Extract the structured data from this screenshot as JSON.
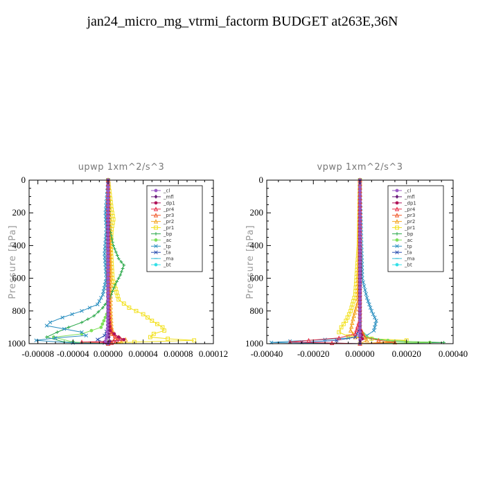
{
  "page": {
    "title": "jan24_micro_mg_vtrmi_factorm  BUDGET at263E,36N"
  },
  "colors": {
    "_cl": "#9b59c6",
    "_mfl": "#6a1b7a",
    "_dp1": "#b0145a",
    "_pr4": "#e8304a",
    "_pr3": "#f05a2a",
    "_pr2": "#f5a623",
    "_pr1": "#f2e01a",
    "_bp": "#2aa84a",
    "_ac": "#7fe05a",
    "_tp": "#2a8fc0",
    "_ta": "#2a4fb0",
    "_ma": "#3ac0d8",
    "_bt": "#33e0e8"
  },
  "chart_data": [
    {
      "id": "upwp",
      "type": "line",
      "title": "upwp   1xm^2/s^3",
      "ylabel": "Pressure [hPa]",
      "xlabel": "",
      "xlim": [
        -9e-05,
        0.00012
      ],
      "ylim": [
        1000,
        0
      ],
      "xticks": [
        -8e-05,
        -4e-05,
        0.0,
        4e-05,
        8e-05,
        0.00012
      ],
      "xtick_labels": [
        "-0.00008",
        "-0.00004",
        "0.00000",
        "0.00004",
        "0.00008",
        "0.00012"
      ],
      "yticks": [
        0,
        200,
        400,
        600,
        800,
        1000
      ],
      "ytick_labels": [
        "0",
        "200",
        "400",
        "600",
        "800",
        "1000"
      ],
      "legend": [
        "_cl",
        "_mfl",
        "_dp1",
        "_pr4",
        "_pr3",
        "_pr2",
        "_pr1",
        "_bp",
        "_ac",
        "_tp",
        "_ta",
        "_ma",
        "_bt"
      ],
      "legend_position": "top-right",
      "series": [
        {
          "name": "_pr1",
          "x": [
            0,
            4e-06,
            6e-06,
            4e-06,
            3e-06,
            5e-06,
            1.2e-05,
            2.4e-05,
            4e-05,
            5e-05,
            6.2e-05,
            6.4e-05,
            5.2e-05,
            4.8e-05,
            6.8e-05,
            9.8e-05,
            3e-05,
            0
          ],
          "y": [
            0,
            180,
            240,
            300,
            400,
            600,
            730,
            780,
            820,
            860,
            900,
            920,
            940,
            960,
            970,
            980,
            990,
            1000
          ]
        },
        {
          "name": "_pr2",
          "x": [
            0,
            2e-06,
            3e-06,
            3e-06,
            4e-06,
            6e-06,
            1.2e-05,
            2e-05,
            1.5e-05,
            0
          ],
          "y": [
            0,
            300,
            600,
            800,
            900,
            940,
            960,
            975,
            990,
            1000
          ]
        },
        {
          "name": "_bp",
          "x": [
            0,
            2e-06,
            6e-06,
            1.2e-05,
            1.8e-05,
            1.4e-05,
            8e-06,
            2e-06,
            -6e-06,
            -1.6e-05,
            -3e-05,
            -4.5e-05,
            -5.8e-05,
            -7e-05,
            -5e-05,
            0
          ],
          "y": [
            0,
            300,
            400,
            480,
            520,
            580,
            640,
            720,
            780,
            830,
            870,
            900,
            930,
            960,
            990,
            1000
          ]
        },
        {
          "name": "_ac",
          "x": [
            0,
            0,
            -8e-06,
            -3e-05,
            -6.2e-05,
            -4e-05,
            0
          ],
          "y": [
            0,
            800,
            900,
            940,
            960,
            990,
            1000
          ]
        },
        {
          "name": "_tp",
          "x": [
            0,
            -3e-06,
            -2e-06,
            -4e-06,
            -2e-06,
            -6e-06,
            -1.2e-05,
            -3e-05,
            -5.2e-05,
            -6.6e-05,
            -7e-05,
            -5e-05,
            -3e-05,
            -2.5e-05,
            -6e-05,
            -8.2e-05,
            -4e-05,
            0
          ],
          "y": [
            0,
            200,
            300,
            450,
            600,
            700,
            760,
            800,
            840,
            870,
            890,
            910,
            930,
            950,
            965,
            980,
            995,
            1000
          ]
        },
        {
          "name": "_ta",
          "x": [
            0,
            0,
            0,
            -4e-06,
            -1.2e-05,
            -4e-06,
            0
          ],
          "y": [
            0,
            600,
            900,
            950,
            975,
            995,
            1000
          ]
        },
        {
          "name": "_pr4",
          "x": [
            0,
            0,
            2e-06,
            4e-06,
            8e-06,
            1.4e-05,
            1e-05,
            6e-06,
            -3e-05,
            4e-06,
            0
          ],
          "y": [
            0,
            700,
            880,
            930,
            955,
            970,
            980,
            985,
            990,
            995,
            1000
          ]
        },
        {
          "name": "_pr3",
          "x": [
            0,
            1e-06,
            4e-06,
            8e-06,
            4e-06,
            0
          ],
          "y": [
            0,
            850,
            940,
            970,
            990,
            1000
          ]
        },
        {
          "name": "_dp1",
          "x": [
            0,
            0,
            0,
            0,
            0,
            2e-06,
            1.2e-05,
            1.8e-05,
            -4e-06,
            0
          ],
          "y": [
            0,
            200,
            400,
            600,
            800,
            920,
            960,
            975,
            990,
            1000
          ]
        },
        {
          "name": "_mfl",
          "x": [
            0,
            0,
            0,
            0,
            1e-06,
            2e-06,
            0
          ],
          "y": [
            0,
            300,
            600,
            900,
            960,
            985,
            1000
          ]
        },
        {
          "name": "_cl",
          "x": [
            0,
            0,
            0,
            -1e-06,
            -3e-06,
            0
          ],
          "y": [
            0,
            400,
            800,
            950,
            985,
            1000
          ]
        }
      ]
    },
    {
      "id": "vpwp",
      "type": "line",
      "title": "vpwp   1xm^2/s^3",
      "ylabel": "Pressure [hPa]",
      "xlabel": "",
      "xlim": [
        -0.0004,
        0.0004
      ],
      "ylim": [
        1000,
        0
      ],
      "xticks": [
        -0.0004,
        -0.0002,
        0.0,
        0.0002,
        0.0004
      ],
      "xtick_labels": [
        "-0.00040",
        "-0.00020",
        "0.00000",
        "0.00020",
        "0.00040"
      ],
      "yticks": [
        0,
        200,
        400,
        600,
        800,
        1000
      ],
      "ytick_labels": [
        "0",
        "200",
        "400",
        "600",
        "800",
        "1000"
      ],
      "legend": [
        "_cl",
        "_mfl",
        "_dp1",
        "_pr4",
        "_pr3",
        "_pr2",
        "_pr1",
        "_bp",
        "_ac",
        "_tp",
        "_ta",
        "_ma",
        "_bt"
      ],
      "legend_position": "top-right",
      "series": [
        {
          "name": "_tp",
          "x": [
            0,
            5e-06,
            1e-05,
            3e-05,
            5e-05,
            7e-05,
            6e-05,
            3e-05,
            -5e-05,
            -0.00015,
            -0.0003,
            -0.00038,
            0
          ],
          "y": [
            0,
            300,
            600,
            720,
            800,
            860,
            920,
            950,
            965,
            975,
            985,
            993,
            1000
          ]
        },
        {
          "name": "_pr1",
          "x": [
            0,
            -5e-06,
            -2e-05,
            -4e-05,
            -6e-05,
            -8e-05,
            -9e-05,
            -5e-05,
            5e-05,
            0.0002,
            0.00012,
            0
          ],
          "y": [
            0,
            400,
            700,
            800,
            860,
            900,
            930,
            955,
            970,
            980,
            990,
            1000
          ]
        },
        {
          "name": "_pr2",
          "x": [
            0,
            -5e-06,
            -1e-05,
            -3e-05,
            -4e-05,
            -2e-05,
            3e-05,
            0
          ],
          "y": [
            0,
            500,
            750,
            850,
            920,
            960,
            980,
            1000
          ]
        },
        {
          "name": "_bp",
          "x": [
            0,
            0,
            1e-05,
            5e-05,
            0.00015,
            0.00036,
            0
          ],
          "y": [
            0,
            900,
            950,
            970,
            985,
            993,
            1000
          ]
        },
        {
          "name": "_ac",
          "x": [
            0,
            0,
            3e-05,
            0.00012,
            0.0003,
            0
          ],
          "y": [
            0,
            920,
            960,
            980,
            992,
            1000
          ]
        },
        {
          "name": "_ta",
          "x": [
            0,
            0,
            -2e-05,
            -0.0001,
            -0.00025,
            0
          ],
          "y": [
            0,
            900,
            960,
            980,
            992,
            1000
          ]
        },
        {
          "name": "_pr4",
          "x": [
            0,
            0,
            -2e-05,
            -9e-05,
            -0.00022,
            -0.0003,
            -0.00012,
            0
          ],
          "y": [
            0,
            850,
            940,
            965,
            980,
            990,
            996,
            1000
          ]
        },
        {
          "name": "_pr3",
          "x": [
            0,
            0,
            2e-05,
            8e-05,
            0.00015,
            0
          ],
          "y": [
            0,
            900,
            960,
            980,
            992,
            1000
          ]
        },
        {
          "name": "_dp1",
          "x": [
            0,
            0,
            0,
            0,
            0,
            0,
            1e-05,
            0
          ],
          "y": [
            0,
            200,
            400,
            600,
            800,
            900,
            970,
            1000
          ]
        },
        {
          "name": "_mfl",
          "x": [
            0,
            0,
            0,
            0,
            0
          ],
          "y": [
            0,
            300,
            600,
            900,
            1000
          ]
        },
        {
          "name": "_cl",
          "x": [
            0,
            0,
            0,
            0
          ],
          "y": [
            0,
            500,
            950,
            1000
          ]
        }
      ]
    }
  ]
}
